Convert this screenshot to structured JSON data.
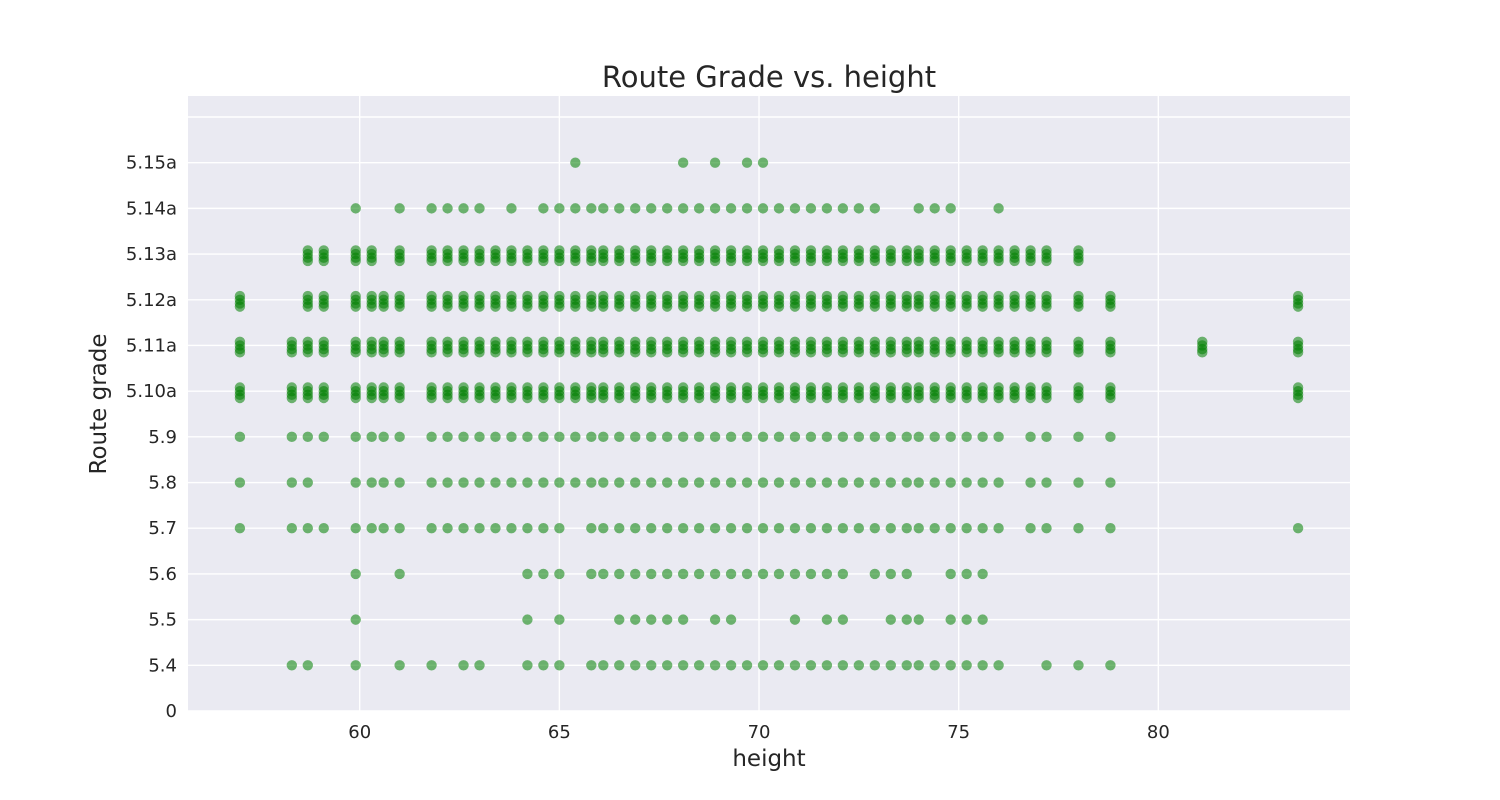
{
  "chart_data": {
    "type": "scatter",
    "title": "Route Grade vs. height",
    "xlabel": "height",
    "ylabel": "Route grade",
    "xlim": [
      55.7,
      84.8
    ],
    "ylim": [
      0,
      13
    ],
    "grid": true,
    "point_color": "#008000",
    "background_color": "#eaeaf2",
    "x_ticks": [
      60,
      65,
      70,
      75,
      80
    ],
    "y_ticks": [
      {
        "value": 0,
        "label": "0"
      },
      {
        "value": 1,
        "label": "5.4"
      },
      {
        "value": 2,
        "label": "5.5"
      },
      {
        "value": 3,
        "label": "5.6"
      },
      {
        "value": 4,
        "label": "5.7"
      },
      {
        "value": 5,
        "label": "5.8"
      },
      {
        "value": 6,
        "label": "5.9"
      },
      {
        "value": 7,
        "label": "5.10a"
      },
      {
        "value": 8,
        "label": "5.11a"
      },
      {
        "value": 9,
        "label": "5.12a"
      },
      {
        "value": 10,
        "label": "5.13a"
      },
      {
        "value": 11,
        "label": "5.14a"
      },
      {
        "value": 12,
        "label": "5.15a"
      }
    ],
    "clusters": [
      {
        "grade": 1,
        "label": "5.4",
        "heights": [
          58.3,
          58.7,
          59.9,
          61.0,
          61.8,
          62.6,
          63.0,
          64.2,
          64.6,
          65.0,
          65.8,
          66.1,
          66.5,
          66.9,
          67.3,
          67.7,
          68.1,
          68.5,
          68.9,
          69.3,
          69.7,
          70.1,
          70.5,
          70.9,
          71.3,
          71.7,
          72.1,
          72.5,
          72.9,
          73.3,
          73.7,
          74.0,
          74.4,
          74.8,
          75.2,
          75.6,
          76.0,
          77.2,
          78.0,
          78.8
        ]
      },
      {
        "grade": 2,
        "label": "5.5",
        "heights": [
          59.9,
          64.2,
          65.0,
          66.5,
          66.9,
          67.3,
          67.7,
          68.1,
          68.9,
          69.3,
          70.9,
          71.7,
          72.1,
          73.3,
          73.7,
          74.0,
          74.8,
          75.2,
          75.6
        ]
      },
      {
        "grade": 3,
        "label": "5.6",
        "heights": [
          59.9,
          61.0,
          64.2,
          64.6,
          65.0,
          65.8,
          66.1,
          66.5,
          66.9,
          67.3,
          67.7,
          68.1,
          68.5,
          68.9,
          69.3,
          69.7,
          70.1,
          70.5,
          70.9,
          71.3,
          71.7,
          72.1,
          72.9,
          73.3,
          73.7,
          74.8,
          75.2,
          75.6
        ]
      },
      {
        "grade": 4,
        "label": "5.7",
        "heights": [
          57.0,
          58.3,
          58.7,
          59.1,
          59.9,
          60.3,
          60.6,
          61.0,
          61.8,
          62.2,
          62.6,
          63.0,
          63.4,
          63.8,
          64.2,
          64.6,
          65.0,
          65.8,
          66.1,
          66.5,
          66.9,
          67.3,
          67.7,
          68.1,
          68.5,
          68.9,
          69.3,
          69.7,
          70.1,
          70.5,
          70.9,
          71.3,
          71.7,
          72.1,
          72.5,
          72.9,
          73.3,
          73.7,
          74.0,
          74.4,
          74.8,
          75.2,
          75.6,
          76.0,
          76.8,
          77.2,
          78.0,
          78.8,
          83.5
        ]
      },
      {
        "grade": 5,
        "label": "5.8",
        "heights": [
          57.0,
          58.3,
          58.7,
          59.9,
          60.3,
          60.6,
          61.0,
          61.8,
          62.2,
          62.6,
          63.0,
          63.4,
          63.8,
          64.2,
          64.6,
          65.0,
          65.4,
          65.8,
          66.1,
          66.5,
          66.9,
          67.3,
          67.7,
          68.1,
          68.5,
          68.9,
          69.3,
          69.7,
          70.1,
          70.5,
          70.9,
          71.3,
          71.7,
          72.1,
          72.5,
          72.9,
          73.3,
          73.7,
          74.0,
          74.4,
          74.8,
          75.2,
          75.6,
          76.0,
          76.8,
          77.2,
          78.0,
          78.8
        ]
      },
      {
        "grade": 6,
        "label": "5.9",
        "heights": [
          57.0,
          58.3,
          58.7,
          59.1,
          59.9,
          60.3,
          60.6,
          61.0,
          61.8,
          62.2,
          62.6,
          63.0,
          63.4,
          63.8,
          64.2,
          64.6,
          65.0,
          65.4,
          65.8,
          66.1,
          66.5,
          66.9,
          67.3,
          67.7,
          68.1,
          68.5,
          68.9,
          69.3,
          69.7,
          70.1,
          70.5,
          70.9,
          71.3,
          71.7,
          72.1,
          72.5,
          72.9,
          73.3,
          73.7,
          74.0,
          74.4,
          74.8,
          75.2,
          75.6,
          76.0,
          76.8,
          77.2,
          78.0,
          78.8
        ]
      },
      {
        "grade": 7,
        "label": "5.10a",
        "heights": [
          57.0,
          58.3,
          58.7,
          59.1,
          59.9,
          60.3,
          60.6,
          61.0,
          61.8,
          62.2,
          62.6,
          63.0,
          63.4,
          63.8,
          64.2,
          64.6,
          65.0,
          65.4,
          65.8,
          66.1,
          66.5,
          66.9,
          67.3,
          67.7,
          68.1,
          68.5,
          68.9,
          69.3,
          69.7,
          70.1,
          70.5,
          70.9,
          71.3,
          71.7,
          72.1,
          72.5,
          72.9,
          73.3,
          73.7,
          74.0,
          74.4,
          74.8,
          75.2,
          75.6,
          76.0,
          76.4,
          76.8,
          77.2,
          78.0,
          78.8,
          83.5
        ]
      },
      {
        "grade": 8,
        "label": "5.11a",
        "heights": [
          57.0,
          58.3,
          58.7,
          59.1,
          59.9,
          60.3,
          60.6,
          61.0,
          61.8,
          62.2,
          62.6,
          63.0,
          63.4,
          63.8,
          64.2,
          64.6,
          65.0,
          65.4,
          65.8,
          66.1,
          66.5,
          66.9,
          67.3,
          67.7,
          68.1,
          68.5,
          68.9,
          69.3,
          69.7,
          70.1,
          70.5,
          70.9,
          71.3,
          71.7,
          72.1,
          72.5,
          72.9,
          73.3,
          73.7,
          74.0,
          74.4,
          74.8,
          75.2,
          75.6,
          76.0,
          76.4,
          76.8,
          77.2,
          78.0,
          78.8,
          81.1,
          83.5
        ]
      },
      {
        "grade": 9,
        "label": "5.12a",
        "heights": [
          57.0,
          58.7,
          59.1,
          59.9,
          60.3,
          60.6,
          61.0,
          61.8,
          62.2,
          62.6,
          63.0,
          63.4,
          63.8,
          64.2,
          64.6,
          65.0,
          65.4,
          65.8,
          66.1,
          66.5,
          66.9,
          67.3,
          67.7,
          68.1,
          68.5,
          68.9,
          69.3,
          69.7,
          70.1,
          70.5,
          70.9,
          71.3,
          71.7,
          72.1,
          72.5,
          72.9,
          73.3,
          73.7,
          74.0,
          74.4,
          74.8,
          75.2,
          75.6,
          76.0,
          76.4,
          76.8,
          77.2,
          78.0,
          78.8,
          83.5
        ]
      },
      {
        "grade": 10,
        "label": "5.13a",
        "heights": [
          58.7,
          59.1,
          59.9,
          60.3,
          61.0,
          61.8,
          62.2,
          62.6,
          63.0,
          63.4,
          63.8,
          64.2,
          64.6,
          65.0,
          65.4,
          65.8,
          66.1,
          66.5,
          66.9,
          67.3,
          67.7,
          68.1,
          68.5,
          68.9,
          69.3,
          69.7,
          70.1,
          70.5,
          70.9,
          71.3,
          71.7,
          72.1,
          72.5,
          72.9,
          73.3,
          73.7,
          74.0,
          74.4,
          74.8,
          75.2,
          75.6,
          76.0,
          76.4,
          76.8,
          77.2,
          78.0
        ]
      },
      {
        "grade": 11,
        "label": "5.14a",
        "heights": [
          59.9,
          61.0,
          61.8,
          62.2,
          62.6,
          63.0,
          63.8,
          64.6,
          65.0,
          65.4,
          65.8,
          66.1,
          66.5,
          66.9,
          67.3,
          67.7,
          68.1,
          68.5,
          68.9,
          69.3,
          69.7,
          70.1,
          70.5,
          70.9,
          71.3,
          71.7,
          72.1,
          72.5,
          72.9,
          74.0,
          74.4,
          74.8,
          76.0
        ]
      },
      {
        "grade": 12,
        "label": "5.15a",
        "heights": [
          65.4,
          68.1,
          68.9,
          69.7,
          70.1
        ]
      }
    ]
  }
}
